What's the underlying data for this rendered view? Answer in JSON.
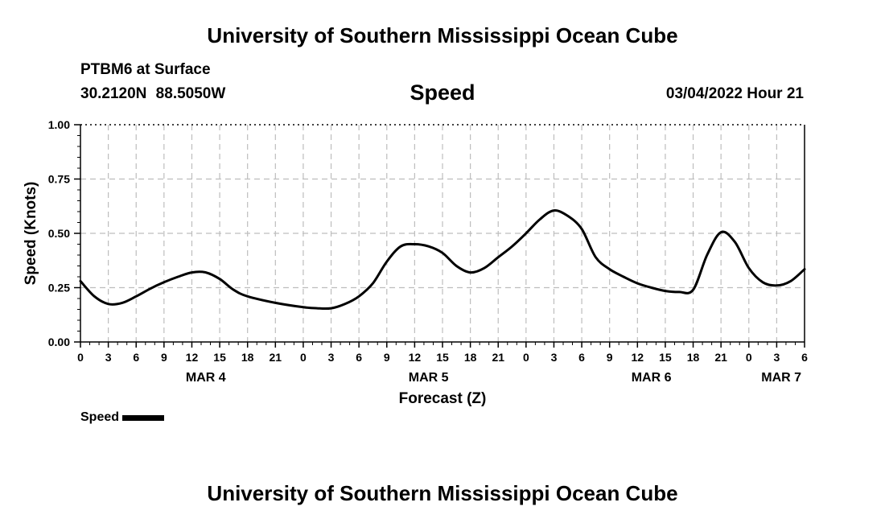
{
  "page": {
    "title_top": "University of Southern Mississippi Ocean Cube",
    "title_bottom": "University of Southern Mississippi Ocean Cube",
    "station": "PTBM6 at Surface",
    "coords": "30.2120N  88.5050W",
    "datetime": "03/04/2022 Hour 21"
  },
  "chart_data": {
    "type": "line",
    "title": "Speed",
    "xlabel": "Forecast (Z)",
    "ylabel": "Speed (Knots)",
    "ylim": [
      0,
      1
    ],
    "yticks": [
      "0.00",
      "0.25",
      "0.50",
      "0.75",
      "1.00"
    ],
    "xlim": [
      0,
      78
    ],
    "xtick_labels": [
      "0",
      "3",
      "6",
      "9",
      "12",
      "15",
      "18",
      "21",
      "0",
      "3",
      "6",
      "9",
      "12",
      "15",
      "18",
      "21",
      "0",
      "3",
      "6",
      "9",
      "12",
      "15",
      "18",
      "21",
      "0",
      "3",
      "6"
    ],
    "date_labels": [
      {
        "hour": 13.5,
        "label": "MAR 4"
      },
      {
        "hour": 37.5,
        "label": "MAR 5"
      },
      {
        "hour": 61.5,
        "label": "MAR 6"
      },
      {
        "hour": 75.5,
        "label": "MAR 7"
      }
    ],
    "grid": true,
    "legend": "bottom-left",
    "series": [
      {
        "name": "Speed",
        "x": [
          0,
          1.5,
          3,
          4.5,
          6,
          7.5,
          9,
          10.5,
          12,
          13.5,
          15,
          16.5,
          18,
          21,
          24,
          25.5,
          27,
          28.5,
          30,
          31.5,
          33,
          34.5,
          36,
          37.5,
          39,
          40.5,
          42,
          43.5,
          45,
          46.5,
          48,
          49.5,
          51,
          52.5,
          54,
          55.5,
          57,
          58.5,
          60,
          61.5,
          63,
          64.5,
          66,
          67.5,
          69,
          70.5,
          72,
          73.5,
          75,
          76.5,
          78
        ],
        "values": [
          0.28,
          0.21,
          0.175,
          0.18,
          0.21,
          0.245,
          0.275,
          0.3,
          0.32,
          0.32,
          0.29,
          0.24,
          0.21,
          0.18,
          0.16,
          0.155,
          0.155,
          0.175,
          0.21,
          0.27,
          0.37,
          0.44,
          0.45,
          0.44,
          0.41,
          0.35,
          0.32,
          0.34,
          0.39,
          0.44,
          0.5,
          0.565,
          0.605,
          0.58,
          0.52,
          0.39,
          0.335,
          0.3,
          0.27,
          0.25,
          0.235,
          0.23,
          0.24,
          0.4,
          0.505,
          0.46,
          0.34,
          0.275,
          0.26,
          0.28,
          0.335
        ]
      }
    ]
  }
}
